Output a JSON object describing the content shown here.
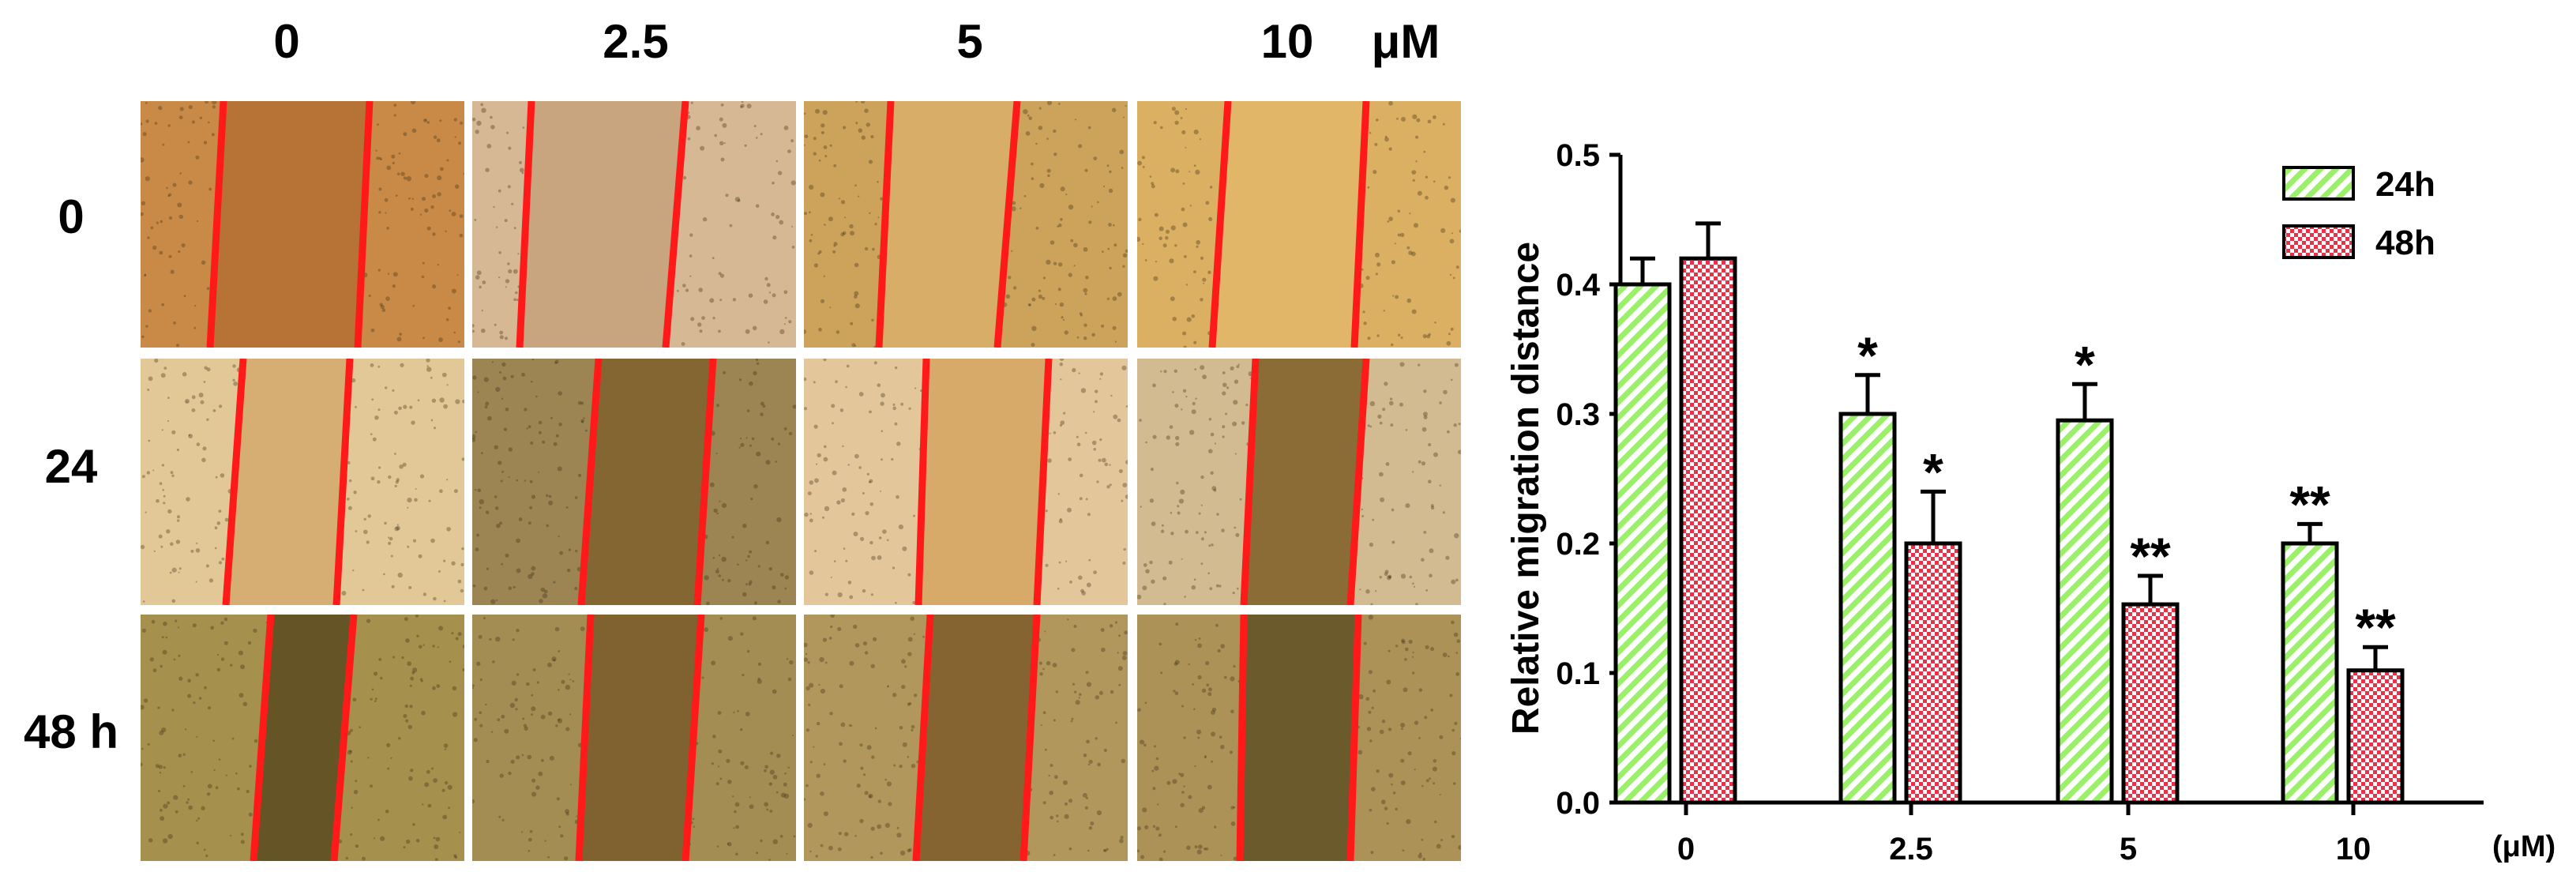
{
  "micrographs": {
    "concentrations": [
      "0",
      "2.5",
      "5",
      "10"
    ],
    "concentration_unit": "μM",
    "times": [
      "0",
      "24",
      "48 h"
    ],
    "panels": [
      {
        "bg": "#c98a47",
        "gap": "#b67335"
      },
      {
        "bg": "#d6b894",
        "gap": "#c9a57f"
      },
      {
        "bg": "#cda35b",
        "gap": "#d8ad68"
      },
      {
        "bg": "#dcb063",
        "gap": "#e1b668"
      },
      {
        "bg": "#e2c896",
        "gap": "#d6ad73"
      },
      {
        "bg": "#9c8552",
        "gap": "#836632"
      },
      {
        "bg": "#e3c79a",
        "gap": "#d7aa69"
      },
      {
        "bg": "#d2bb90",
        "gap": "#8c6c36"
      },
      {
        "bg": "#a6904d",
        "gap": "#645426"
      },
      {
        "bg": "#a38d52",
        "gap": "#806130"
      },
      {
        "bg": "#b1975c",
        "gap": "#866431"
      },
      {
        "bg": "#ad9258",
        "gap": "#6b5a2c"
      }
    ],
    "boundary_color": "#ff1a1a"
  },
  "chart_data": {
    "type": "bar",
    "categories": [
      "0",
      "2.5",
      "5",
      "10"
    ],
    "x_unit_label": "(μM)",
    "ylabel": "Relative migration distance",
    "xlabel": "",
    "title": "",
    "ylim": [
      0,
      0.5
    ],
    "yticks": [
      "0.0",
      "0.1",
      "0.2",
      "0.3",
      "0.4",
      "0.5"
    ],
    "grid": false,
    "legend_position": "top-right",
    "series": [
      {
        "name": "24h",
        "values": [
          0.4,
          0.3,
          0.295,
          0.2
        ],
        "errors": [
          0.02,
          0.03,
          0.028,
          0.015
        ],
        "color": "#9bf06a",
        "pattern": "diagonal-hatch",
        "significance": [
          "",
          "*",
          "*",
          "**"
        ]
      },
      {
        "name": "48h",
        "values": [
          0.42,
          0.2,
          0.153,
          0.102
        ],
        "errors": [
          0.027,
          0.04,
          0.022,
          0.018
        ],
        "color": "#e8324a",
        "pattern": "crosshatch",
        "significance": [
          "",
          "*",
          "**",
          "**"
        ]
      }
    ]
  }
}
